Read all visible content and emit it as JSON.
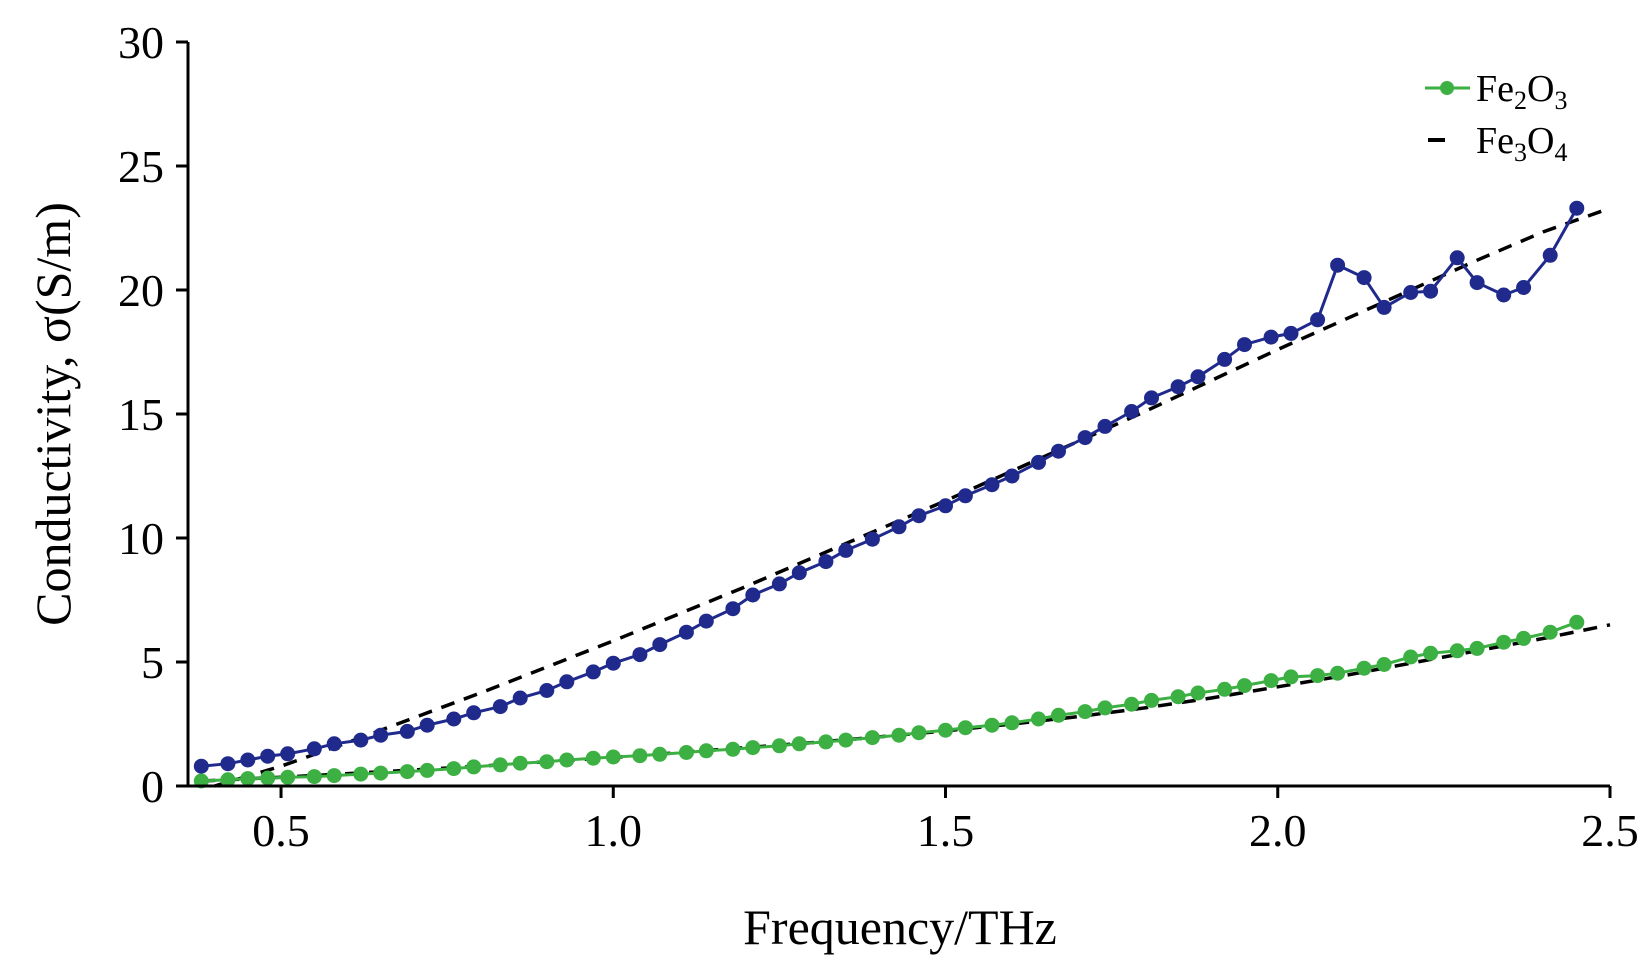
{
  "chart_data": {
    "type": "line",
    "xlabel": "Frequency/THz",
    "ylabel": "Conductivity, σ(S/m)",
    "xlim": [
      0.36,
      2.5
    ],
    "ylim": [
      0,
      30
    ],
    "xticks": [
      "0.5",
      "1.0",
      "1.5",
      "2.0",
      "2.5"
    ],
    "yticks": [
      "0",
      "5",
      "10",
      "15",
      "20",
      "25",
      "30"
    ],
    "grid": false,
    "legend_position": "top-right",
    "legend": [
      {
        "label": "Fe2O3",
        "base": "Fe",
        "sub1": "2",
        "mid": "O",
        "sub2": "3",
        "color": "#3cb043",
        "style": "line-marker"
      },
      {
        "label": "Fe3O4",
        "base": "Fe",
        "sub1": "3",
        "mid": "O",
        "sub2": "4",
        "color": "#000000",
        "style": "dashed"
      }
    ],
    "series": [
      {
        "color": "#1f2a8c",
        "style": "line-marker",
        "points": [
          [
            0.38,
            0.8
          ],
          [
            0.42,
            0.9
          ],
          [
            0.45,
            1.05
          ],
          [
            0.48,
            1.2
          ],
          [
            0.51,
            1.3
          ],
          [
            0.55,
            1.5
          ],
          [
            0.58,
            1.7
          ],
          [
            0.62,
            1.85
          ],
          [
            0.65,
            2.05
          ],
          [
            0.69,
            2.2
          ],
          [
            0.72,
            2.45
          ],
          [
            0.76,
            2.7
          ],
          [
            0.79,
            2.95
          ],
          [
            0.83,
            3.2
          ],
          [
            0.86,
            3.55
          ],
          [
            0.9,
            3.85
          ],
          [
            0.93,
            4.2
          ],
          [
            0.97,
            4.6
          ],
          [
            1.0,
            4.95
          ],
          [
            1.04,
            5.3
          ],
          [
            1.07,
            5.7
          ],
          [
            1.11,
            6.2
          ],
          [
            1.14,
            6.65
          ],
          [
            1.18,
            7.15
          ],
          [
            1.21,
            7.7
          ],
          [
            1.25,
            8.15
          ],
          [
            1.28,
            8.6
          ],
          [
            1.32,
            9.05
          ],
          [
            1.35,
            9.5
          ],
          [
            1.39,
            9.95
          ],
          [
            1.43,
            10.45
          ],
          [
            1.46,
            10.9
          ],
          [
            1.5,
            11.3
          ],
          [
            1.53,
            11.7
          ],
          [
            1.57,
            12.15
          ],
          [
            1.6,
            12.5
          ],
          [
            1.64,
            13.05
          ],
          [
            1.67,
            13.5
          ],
          [
            1.71,
            14.05
          ],
          [
            1.74,
            14.5
          ],
          [
            1.78,
            15.1
          ],
          [
            1.81,
            15.65
          ],
          [
            1.85,
            16.1
          ],
          [
            1.88,
            16.5
          ],
          [
            1.92,
            17.2
          ],
          [
            1.95,
            17.8
          ],
          [
            1.99,
            18.1
          ],
          [
            2.02,
            18.25
          ],
          [
            2.06,
            18.8
          ],
          [
            2.09,
            21.0
          ],
          [
            2.13,
            20.5
          ],
          [
            2.16,
            19.3
          ],
          [
            2.2,
            19.9
          ],
          [
            2.23,
            19.95
          ],
          [
            2.27,
            21.3
          ],
          [
            2.3,
            20.3
          ],
          [
            2.34,
            19.8
          ],
          [
            2.37,
            20.1
          ],
          [
            2.41,
            21.4
          ],
          [
            2.45,
            23.3
          ]
        ]
      },
      {
        "color": "#3cb043",
        "style": "line-marker",
        "points": [
          [
            0.38,
            0.2
          ],
          [
            0.42,
            0.25
          ],
          [
            0.45,
            0.3
          ],
          [
            0.48,
            0.32
          ],
          [
            0.51,
            0.35
          ],
          [
            0.55,
            0.38
          ],
          [
            0.58,
            0.42
          ],
          [
            0.62,
            0.48
          ],
          [
            0.65,
            0.52
          ],
          [
            0.69,
            0.58
          ],
          [
            0.72,
            0.63
          ],
          [
            0.76,
            0.7
          ],
          [
            0.79,
            0.77
          ],
          [
            0.83,
            0.85
          ],
          [
            0.86,
            0.92
          ],
          [
            0.9,
            0.98
          ],
          [
            0.93,
            1.05
          ],
          [
            0.97,
            1.12
          ],
          [
            1.0,
            1.17
          ],
          [
            1.04,
            1.22
          ],
          [
            1.07,
            1.28
          ],
          [
            1.11,
            1.35
          ],
          [
            1.14,
            1.42
          ],
          [
            1.18,
            1.48
          ],
          [
            1.21,
            1.55
          ],
          [
            1.25,
            1.62
          ],
          [
            1.28,
            1.7
          ],
          [
            1.32,
            1.78
          ],
          [
            1.35,
            1.85
          ],
          [
            1.39,
            1.95
          ],
          [
            1.43,
            2.05
          ],
          [
            1.46,
            2.15
          ],
          [
            1.5,
            2.25
          ],
          [
            1.53,
            2.35
          ],
          [
            1.57,
            2.45
          ],
          [
            1.6,
            2.55
          ],
          [
            1.64,
            2.7
          ],
          [
            1.67,
            2.85
          ],
          [
            1.71,
            3.0
          ],
          [
            1.74,
            3.15
          ],
          [
            1.78,
            3.3
          ],
          [
            1.81,
            3.45
          ],
          [
            1.85,
            3.6
          ],
          [
            1.88,
            3.75
          ],
          [
            1.92,
            3.9
          ],
          [
            1.95,
            4.05
          ],
          [
            1.99,
            4.25
          ],
          [
            2.02,
            4.4
          ],
          [
            2.06,
            4.45
          ],
          [
            2.09,
            4.55
          ],
          [
            2.13,
            4.75
          ],
          [
            2.16,
            4.9
          ],
          [
            2.2,
            5.2
          ],
          [
            2.23,
            5.35
          ],
          [
            2.27,
            5.45
          ],
          [
            2.3,
            5.55
          ],
          [
            2.34,
            5.8
          ],
          [
            2.37,
            5.95
          ],
          [
            2.41,
            6.2
          ],
          [
            2.45,
            6.6
          ]
        ]
      },
      {
        "color": "#000000",
        "style": "dashed",
        "points": [
          [
            0.4,
            0.0
          ],
          [
            0.5,
            0.8
          ],
          [
            0.6,
            1.75
          ],
          [
            0.7,
            2.75
          ],
          [
            0.8,
            3.75
          ],
          [
            0.9,
            4.8
          ],
          [
            1.0,
            5.85
          ],
          [
            1.1,
            6.95
          ],
          [
            1.2,
            8.05
          ],
          [
            1.3,
            9.2
          ],
          [
            1.4,
            10.35
          ],
          [
            1.5,
            11.5
          ],
          [
            1.6,
            12.7
          ],
          [
            1.7,
            13.9
          ],
          [
            1.8,
            15.1
          ],
          [
            1.9,
            16.35
          ],
          [
            2.0,
            17.6
          ],
          [
            2.1,
            18.8
          ],
          [
            2.2,
            20.0
          ],
          [
            2.3,
            21.2
          ],
          [
            2.4,
            22.35
          ],
          [
            2.5,
            23.3
          ]
        ]
      },
      {
        "color": "#000000",
        "style": "dashed",
        "points": [
          [
            0.38,
            0.2
          ],
          [
            0.5,
            0.35
          ],
          [
            0.6,
            0.5
          ],
          [
            0.7,
            0.65
          ],
          [
            0.8,
            0.8
          ],
          [
            0.9,
            0.98
          ],
          [
            1.0,
            1.15
          ],
          [
            1.1,
            1.35
          ],
          [
            1.2,
            1.55
          ],
          [
            1.3,
            1.75
          ],
          [
            1.4,
            1.98
          ],
          [
            1.5,
            2.22
          ],
          [
            1.6,
            2.5
          ],
          [
            1.7,
            2.8
          ],
          [
            1.8,
            3.15
          ],
          [
            1.9,
            3.55
          ],
          [
            2.0,
            4.0
          ],
          [
            2.1,
            4.45
          ],
          [
            2.2,
            4.95
          ],
          [
            2.3,
            5.45
          ],
          [
            2.4,
            5.95
          ],
          [
            2.5,
            6.5
          ]
        ]
      }
    ]
  }
}
